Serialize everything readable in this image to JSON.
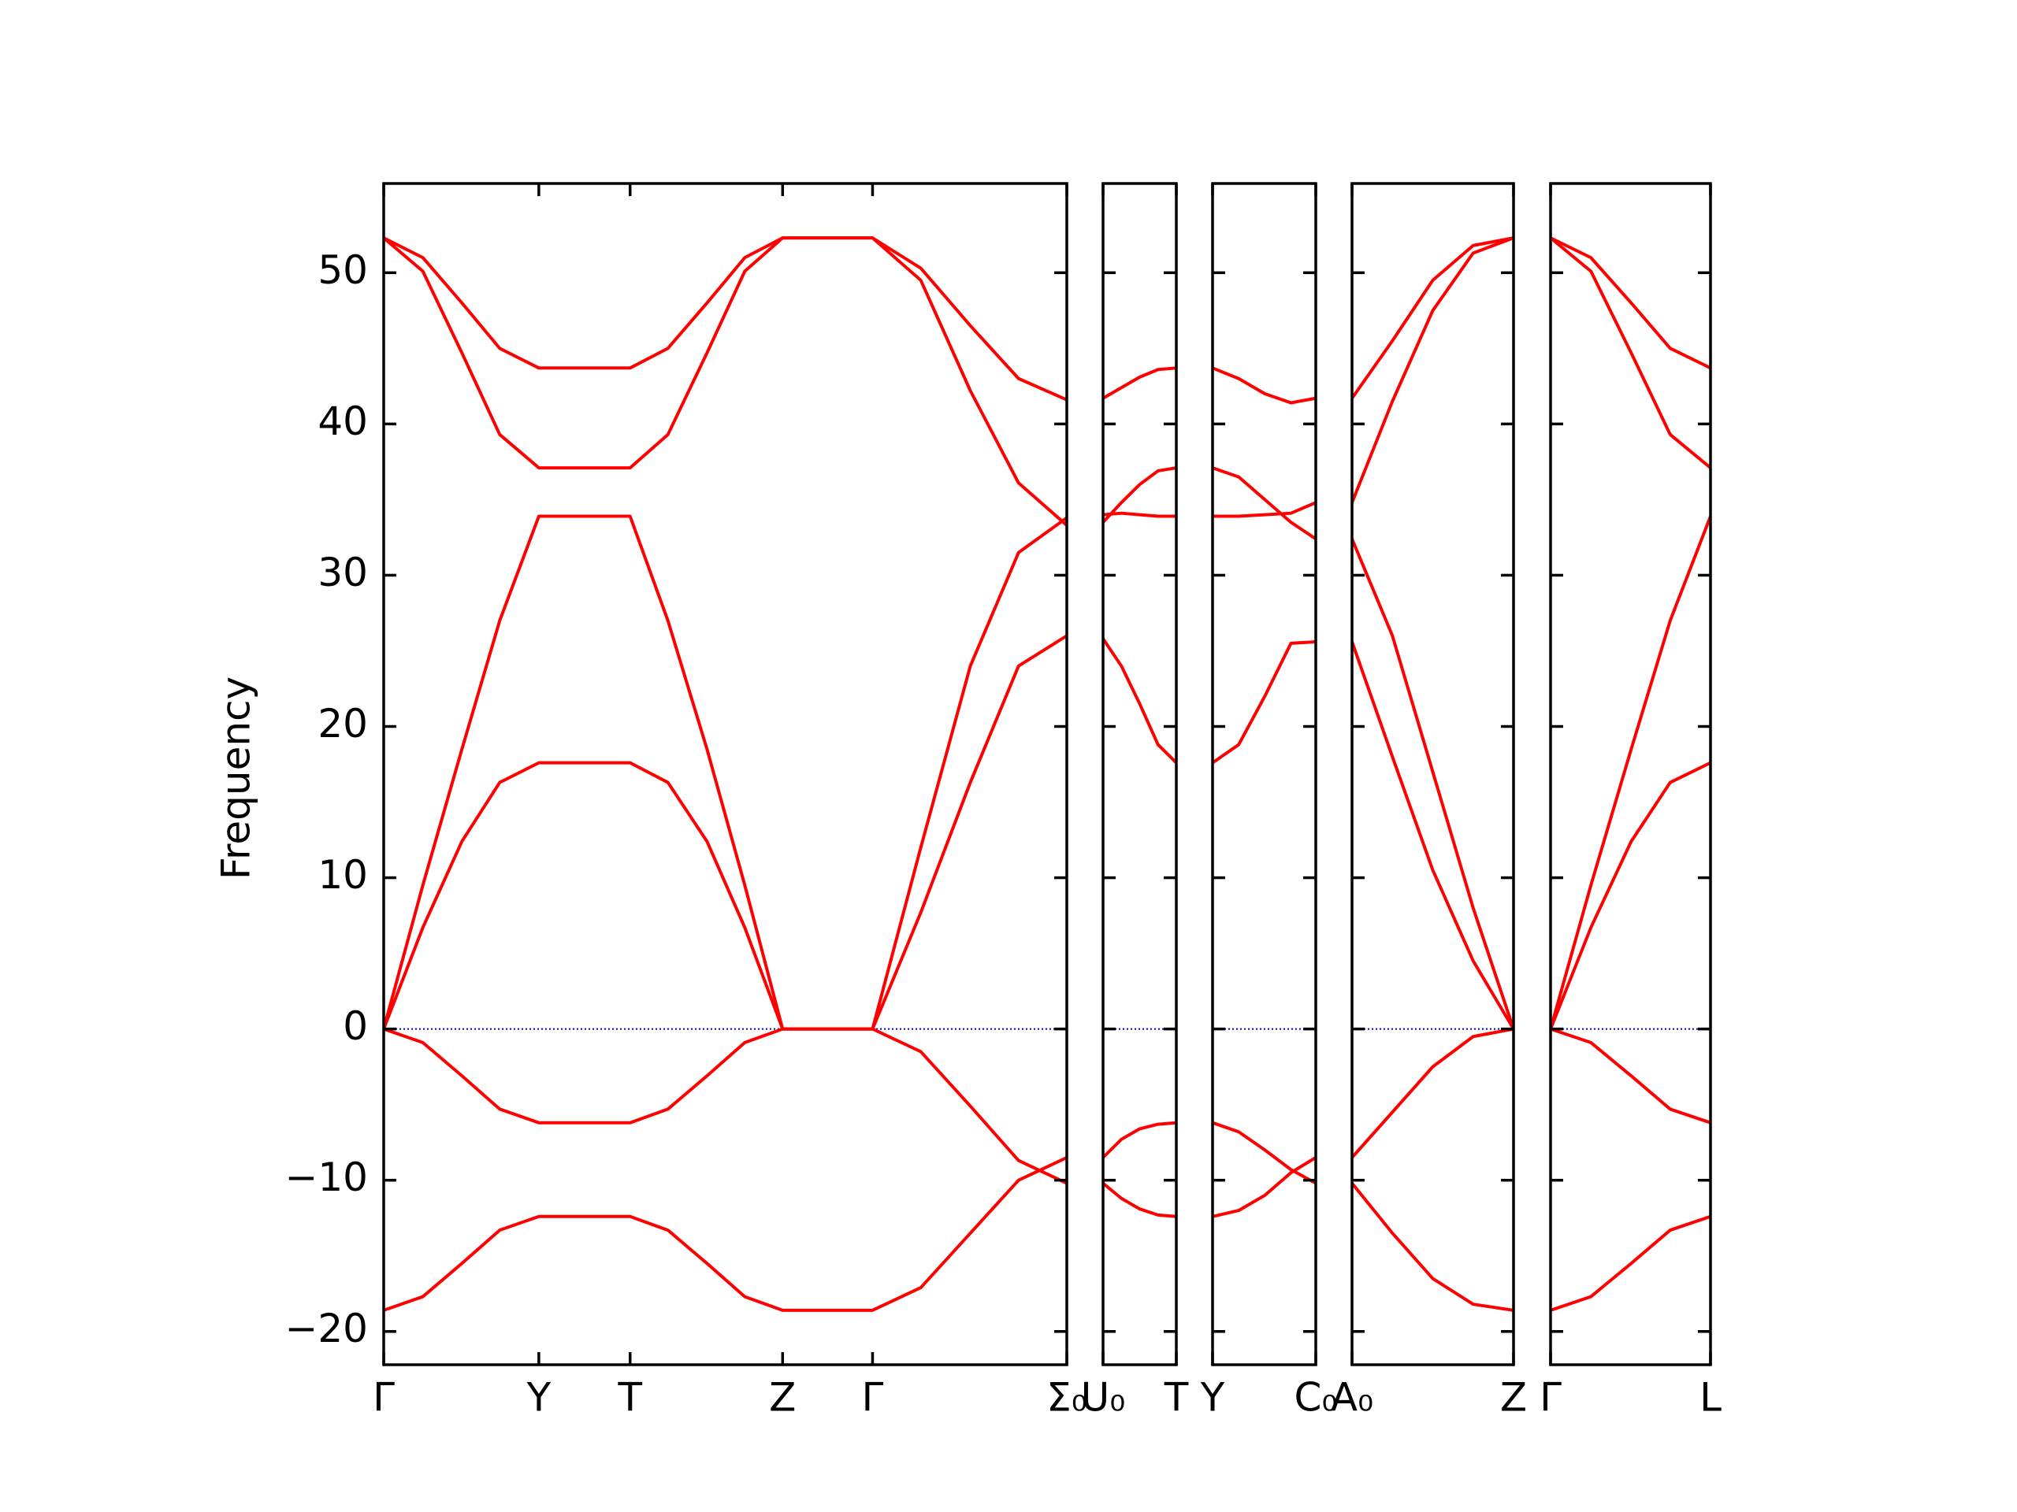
{
  "chart_data": {
    "type": "line",
    "ylabel": "Frequency",
    "ylim": [
      -22.2,
      55.9
    ],
    "yticks": [
      {
        "value": -20,
        "label": "−20"
      },
      {
        "value": -10,
        "label": "−10"
      },
      0,
      10,
      20,
      30,
      40,
      50
    ],
    "line_color": "#ff0000",
    "reference_line": {
      "value": 0,
      "color": "#0000cc",
      "style": "dotted"
    },
    "panels": [
      {
        "xlim": [
          0,
          5.24
        ],
        "xticks": [
          {
            "value": 0,
            "label": "Γ"
          },
          {
            "value": 1.19,
            "label": "Y"
          },
          {
            "value": 1.89,
            "label": "T"
          },
          {
            "value": 3.06,
            "label": "Z"
          },
          {
            "value": 3.75,
            "label": "Γ"
          },
          {
            "value": 5.24,
            "label": "Σ₀"
          }
        ],
        "x": [
          0,
          0.3,
          0.6,
          0.89,
          1.19,
          1.89,
          2.18,
          2.48,
          2.77,
          3.06,
          3.75,
          4.12,
          4.5,
          4.87,
          5.24
        ],
        "series": [
          {
            "values": [
              52.3,
              51.0,
              48.0,
              45.0,
              43.7,
              43.7,
              45.0,
              48.0,
              51.0,
              52.3,
              52.3,
              50.3,
              46.5,
              43.0,
              41.6
            ]
          },
          {
            "values": [
              52.3,
              50.1,
              44.7,
              39.3,
              37.1,
              37.1,
              39.3,
              44.7,
              50.1,
              52.3,
              52.3,
              49.5,
              42.2,
              36.1,
              33.3
            ]
          },
          {
            "values": [
              0,
              9.5,
              18.5,
              27.0,
              33.9,
              33.9,
              27.0,
              18.5,
              9.5,
              0,
              0,
              12.0,
              24.0,
              31.5,
              33.8
            ]
          },
          {
            "values": [
              0,
              6.7,
              12.4,
              16.3,
              17.6,
              17.6,
              16.3,
              12.4,
              6.7,
              0,
              0,
              7.7,
              16.3,
              24.0,
              26.0
            ]
          },
          {
            "values": [
              0,
              -0.9,
              -3.1,
              -5.3,
              -6.2,
              -6.2,
              -5.3,
              -3.1,
              -0.9,
              0,
              0,
              -1.5,
              -5.1,
              -8.7,
              -10.2
            ]
          },
          {
            "values": [
              -18.6,
              -17.7,
              -15.5,
              -13.3,
              -12.4,
              -12.4,
              -13.3,
              -15.5,
              -17.7,
              -18.6,
              -18.6,
              -17.1,
              -13.5,
              -10.0,
              -8.5
            ]
          }
        ]
      },
      {
        "xlim": [
          0,
          0.56
        ],
        "xticks": [
          {
            "value": 0,
            "label": "U₀"
          },
          {
            "value": 0.56,
            "label": "T"
          }
        ],
        "x": [
          0,
          0.14,
          0.28,
          0.42,
          0.56
        ],
        "series": [
          {
            "values": [
              41.7,
              42.4,
              43.1,
              43.6,
              43.7
            ]
          },
          {
            "values": [
              33.5,
              34.8,
              36.0,
              36.9,
              37.1
            ]
          },
          {
            "values": [
              34.0,
              34.1,
              34.0,
              33.9,
              33.9
            ]
          },
          {
            "values": [
              25.8,
              24.0,
              21.5,
              18.8,
              17.6
            ]
          },
          {
            "values": [
              -8.5,
              -7.3,
              -6.6,
              -6.3,
              -6.2
            ]
          },
          {
            "values": [
              -10.2,
              -11.2,
              -11.9,
              -12.3,
              -12.4
            ]
          }
        ]
      },
      {
        "xlim": [
          0,
          0.79
        ],
        "xticks": [
          {
            "value": 0,
            "label": "Y"
          },
          {
            "value": 0.79,
            "label": "C₀"
          }
        ],
        "x": [
          0,
          0.2,
          0.4,
          0.6,
          0.79
        ],
        "series": [
          {
            "values": [
              43.7,
              43.0,
              42.0,
              41.4,
              41.7
            ]
          },
          {
            "values": [
              37.1,
              36.5,
              35.0,
              33.5,
              32.4
            ]
          },
          {
            "values": [
              33.9,
              33.9,
              34.0,
              34.1,
              34.8
            ]
          },
          {
            "values": [
              17.6,
              18.8,
              22.0,
              25.5,
              25.6
            ]
          },
          {
            "values": [
              -6.2,
              -6.8,
              -8.0,
              -9.3,
              -10.2
            ]
          },
          {
            "values": [
              -12.4,
              -12.0,
              -11.0,
              -9.5,
              -8.5
            ]
          }
        ]
      },
      {
        "xlim": [
          0,
          1.24
        ],
        "xticks": [
          {
            "value": 0,
            "label": "A₀"
          },
          {
            "value": 1.24,
            "label": "Z"
          }
        ],
        "x": [
          0,
          0.31,
          0.62,
          0.93,
          1.24
        ],
        "series": [
          {
            "values": [
              41.7,
              45.5,
              49.5,
              51.8,
              52.3
            ]
          },
          {
            "values": [
              34.8,
              41.5,
              47.5,
              51.3,
              52.3
            ]
          },
          {
            "values": [
              32.4,
              26.0,
              17.0,
              8.0,
              0
            ]
          },
          {
            "values": [
              25.6,
              18.0,
              10.5,
              4.5,
              0
            ]
          },
          {
            "values": [
              -8.5,
              -5.5,
              -2.5,
              -0.5,
              0
            ]
          },
          {
            "values": [
              -10.2,
              -13.5,
              -16.5,
              -18.2,
              -18.6
            ]
          }
        ]
      },
      {
        "xlim": [
          0,
          1.23
        ],
        "xticks": [
          {
            "value": 0,
            "label": "Γ"
          },
          {
            "value": 1.23,
            "label": "L"
          }
        ],
        "x": [
          0,
          0.31,
          0.62,
          0.92,
          1.23
        ],
        "series": [
          {
            "values": [
              52.3,
              51.0,
              48.0,
              45.0,
              43.7
            ]
          },
          {
            "values": [
              52.3,
              50.1,
              44.7,
              39.3,
              37.1
            ]
          },
          {
            "values": [
              0,
              9.5,
              18.5,
              27.0,
              33.9
            ]
          },
          {
            "values": [
              0,
              6.7,
              12.4,
              16.3,
              17.6
            ]
          },
          {
            "values": [
              0,
              -0.9,
              -3.1,
              -5.3,
              -6.2
            ]
          },
          {
            "values": [
              -18.6,
              -17.7,
              -15.5,
              -13.3,
              -12.4
            ]
          }
        ]
      }
    ]
  }
}
